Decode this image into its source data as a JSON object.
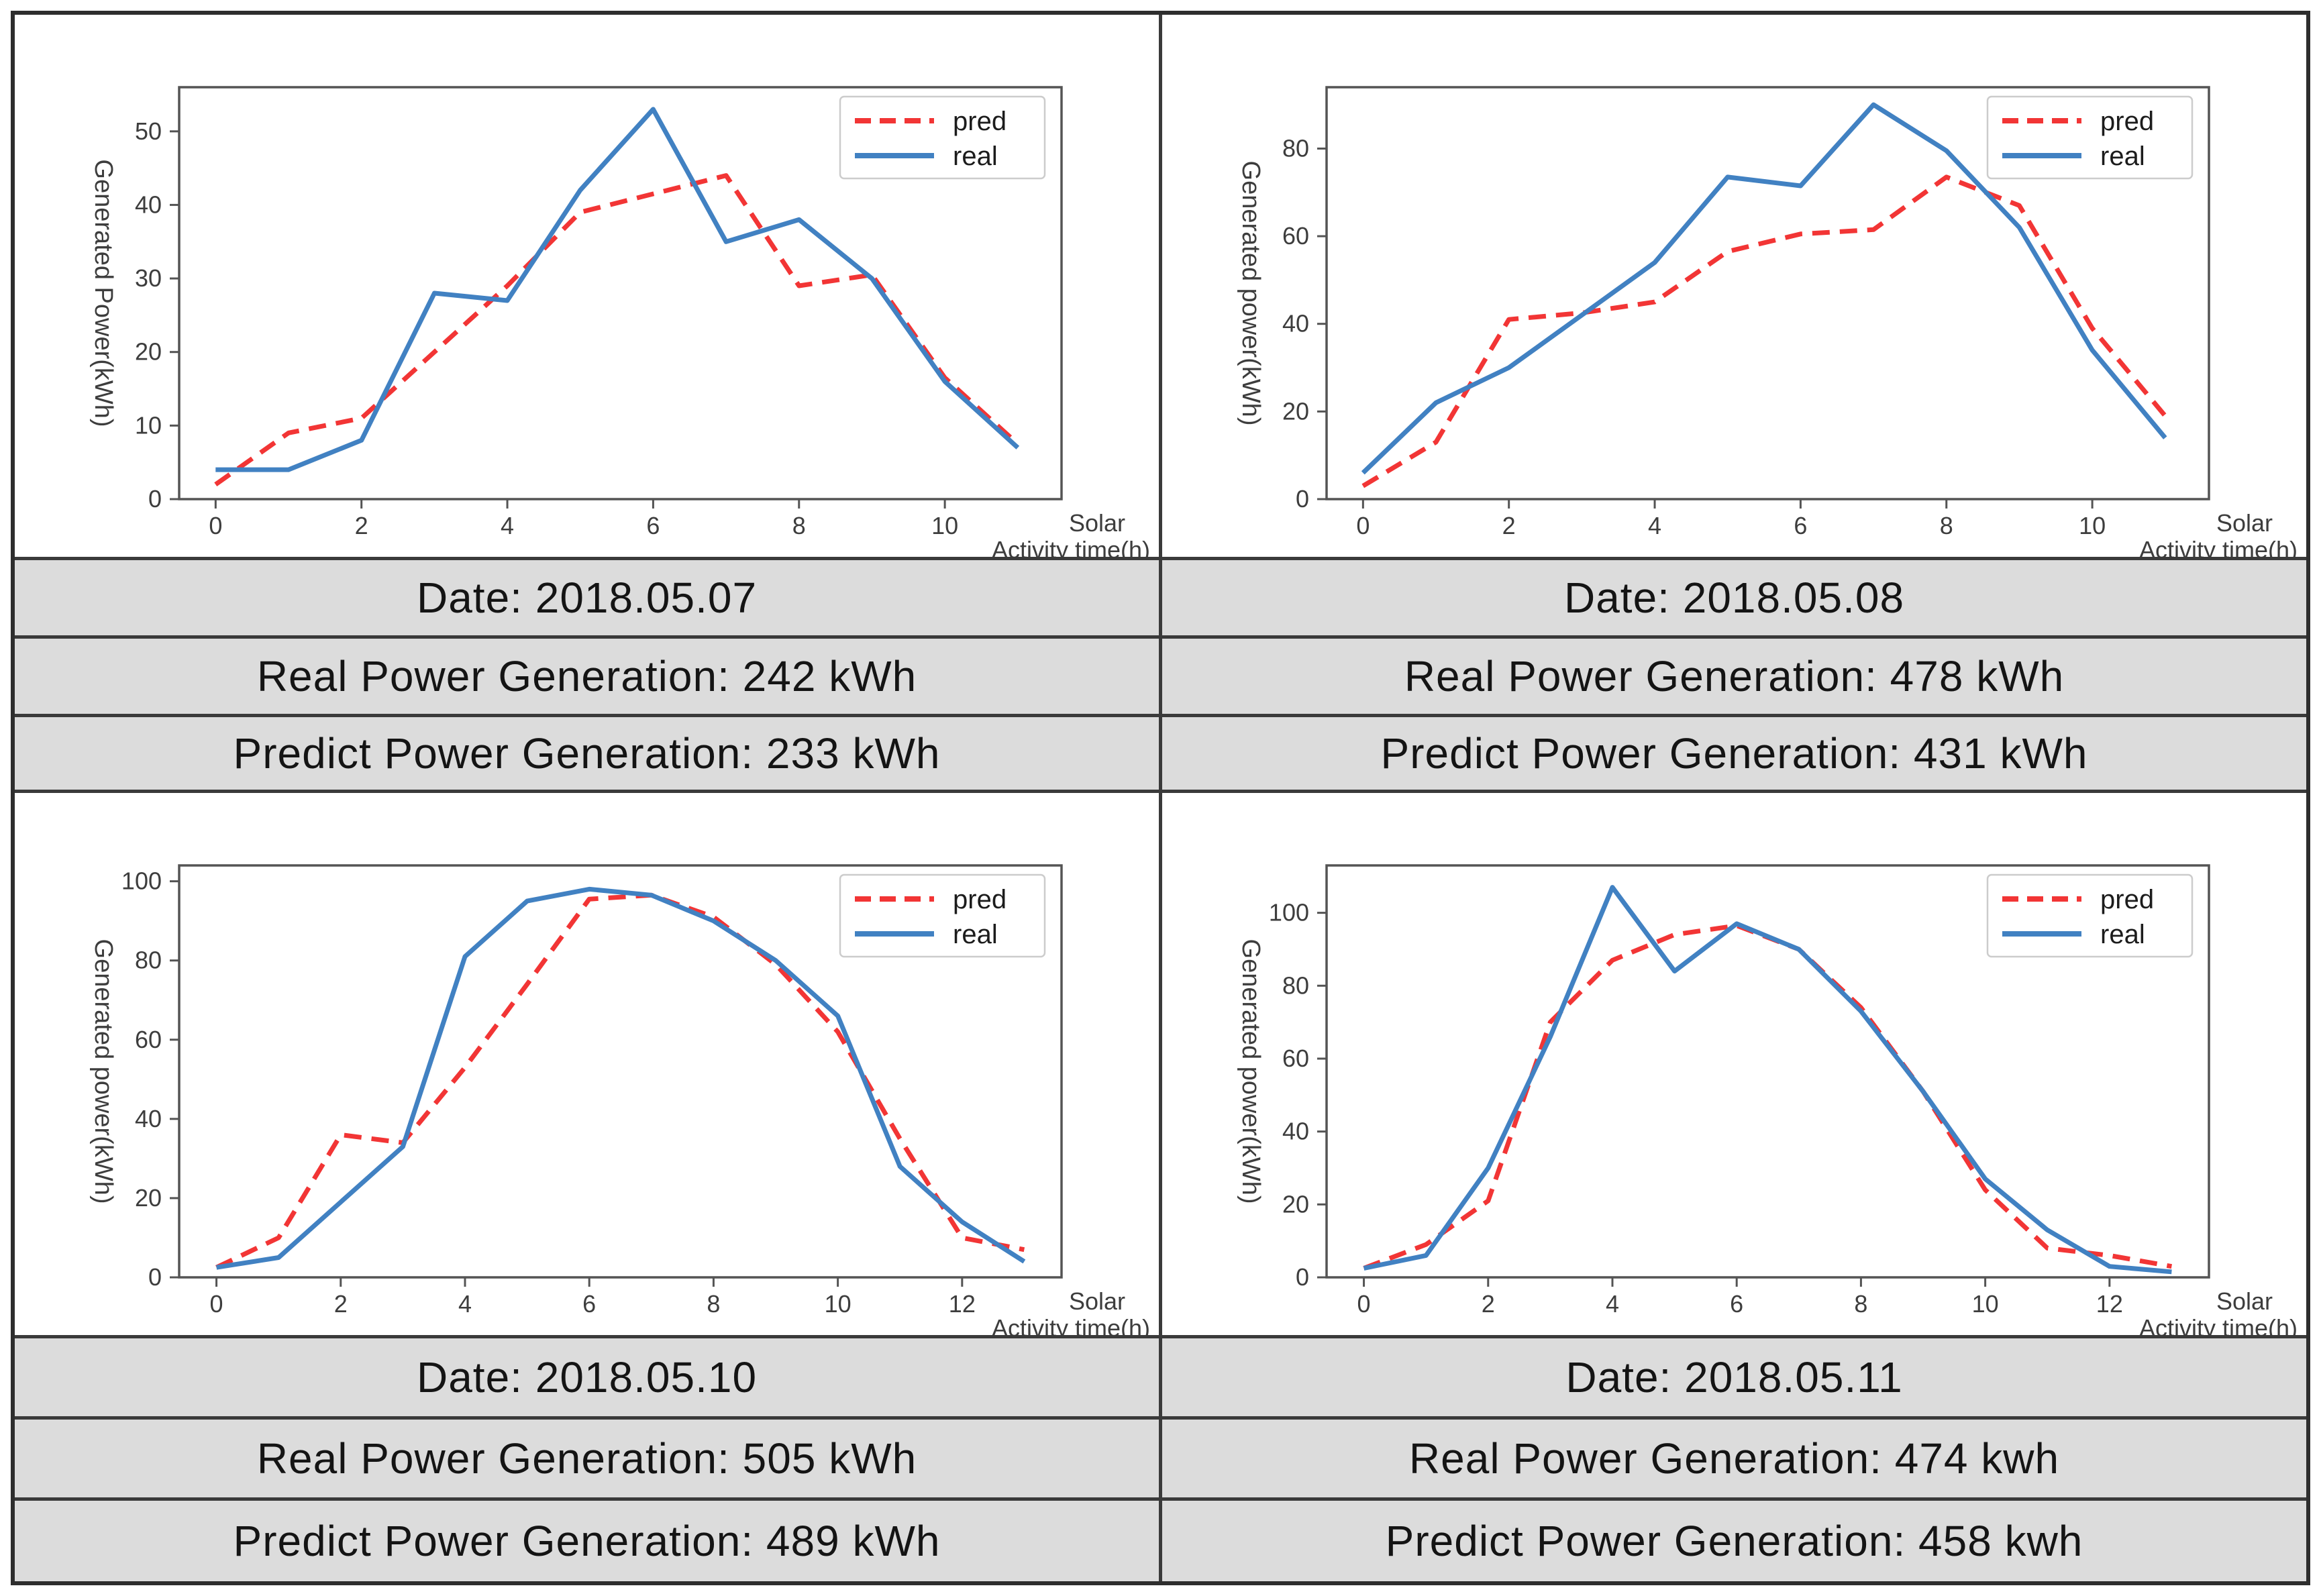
{
  "colors": {
    "pred": "#f23535",
    "real": "#4181c2",
    "axis": "#545454",
    "tick_text": "#3d3d3d",
    "label_text": "#3d3d3d",
    "legend_border": "#cccccc",
    "caption_bg": "#dcdcdc",
    "caption_text": "#141414",
    "grid_border": "#3a3a3a"
  },
  "legend_labels": {
    "pred": "pred",
    "real": "real"
  },
  "chart_data": [
    {
      "type": "line",
      "panel": "top-left",
      "ylabel": "Generated Power(kWh)",
      "xlabel_lines": [
        "Solar",
        "Activity time(h)"
      ],
      "x": [
        0,
        1,
        2,
        3,
        4,
        5,
        6,
        7,
        8,
        9,
        10,
        11
      ],
      "series": [
        {
          "name": "pred",
          "style": "dashed",
          "values": [
            2,
            9,
            11,
            20,
            29,
            39,
            41.5,
            44,
            29,
            30.5,
            16.5,
            7.5
          ]
        },
        {
          "name": "real",
          "style": "solid",
          "values": [
            4,
            4,
            8,
            28,
            27,
            42,
            53,
            35,
            38,
            30,
            16,
            7
          ]
        }
      ],
      "yticks": [
        0,
        10,
        20,
        30,
        40,
        50
      ],
      "xticks": [
        0,
        2,
        4,
        6,
        8,
        10
      ],
      "ylim": [
        0,
        56
      ],
      "xlim": [
        -0.5,
        11.6
      ],
      "legend": [
        "pred",
        "real"
      ],
      "legend_position": "upper right",
      "grid": false,
      "captions": {
        "date": "Date: 2018.05.07",
        "real": "Real Power Generation: 242 kWh",
        "predict": "Predict Power Generation: 233 kWh"
      }
    },
    {
      "type": "line",
      "panel": "top-right",
      "ylabel": "Generated  power(kWh)",
      "xlabel_lines": [
        "Solar",
        "Activity time(h)"
      ],
      "x": [
        0,
        1,
        2,
        3,
        4,
        5,
        6,
        7,
        8,
        9,
        10,
        11
      ],
      "series": [
        {
          "name": "pred",
          "style": "dashed",
          "values": [
            3,
            13,
            41,
            42.5,
            45,
            56.5,
            60.5,
            61.5,
            73.5,
            67,
            39,
            19
          ]
        },
        {
          "name": "real",
          "style": "solid",
          "values": [
            6,
            22,
            30,
            42,
            54,
            73.5,
            71.5,
            90,
            79.5,
            62,
            34,
            14
          ]
        }
      ],
      "yticks": [
        0,
        20,
        40,
        60,
        80
      ],
      "xticks": [
        0,
        2,
        4,
        6,
        8,
        10
      ],
      "ylim": [
        0,
        94
      ],
      "xlim": [
        -0.5,
        11.6
      ],
      "legend": [
        "pred",
        "real"
      ],
      "legend_position": "upper right",
      "grid": false,
      "captions": {
        "date": "Date: 2018.05.08",
        "real": "Real Power Generation: 478 kWh",
        "predict": "Predict Power Generation: 431 kWh"
      }
    },
    {
      "type": "line",
      "panel": "bottom-left",
      "ylabel": "Generated  power(kWh)",
      "xlabel_lines": [
        "Solar",
        "Activity time(h)"
      ],
      "x": [
        0,
        1,
        2,
        3,
        4,
        5,
        6,
        7,
        8,
        9,
        10,
        11,
        12,
        13
      ],
      "series": [
        {
          "name": "pred",
          "style": "dashed",
          "values": [
            2.5,
            10,
            36,
            34,
            53,
            74,
            95.5,
            96.5,
            91,
            79,
            62,
            35,
            10,
            7
          ]
        },
        {
          "name": "real",
          "style": "solid",
          "values": [
            2.5,
            5,
            19,
            33,
            81,
            95,
            98,
            96.5,
            90,
            80,
            66,
            28,
            14,
            4
          ]
        }
      ],
      "yticks": [
        0,
        20,
        40,
        60,
        80,
        100
      ],
      "xticks": [
        0,
        2,
        4,
        6,
        8,
        10,
        12
      ],
      "ylim": [
        0,
        104
      ],
      "xlim": [
        -0.6,
        13.6
      ],
      "legend": [
        "pred",
        "real"
      ],
      "legend_position": "upper right",
      "grid": false,
      "captions": {
        "date": "Date: 2018.05.10",
        "real": "Real Power Generation: 505 kWh",
        "predict": "Predict Power Generation: 489 kWh"
      }
    },
    {
      "type": "line",
      "panel": "bottom-right",
      "ylabel": "Generated  power(kWh)",
      "xlabel_lines": [
        "Solar",
        "Activity time(h)"
      ],
      "x": [
        0,
        1,
        2,
        3,
        4,
        5,
        6,
        7,
        8,
        9,
        10,
        11,
        12,
        13
      ],
      "series": [
        {
          "name": "pred",
          "style": "dashed",
          "values": [
            2.5,
            9,
            21,
            70,
            87,
            94,
            96.5,
            90,
            74,
            51,
            24,
            8,
            6,
            3
          ]
        },
        {
          "name": "real",
          "style": "solid",
          "values": [
            2.5,
            6,
            30,
            66,
            107,
            84,
            97,
            90,
            73,
            51,
            27,
            13,
            3,
            1.5
          ]
        }
      ],
      "yticks": [
        0,
        20,
        40,
        60,
        80,
        100
      ],
      "xticks": [
        0,
        2,
        4,
        6,
        8,
        10,
        12
      ],
      "ylim": [
        0,
        113
      ],
      "xlim": [
        -0.6,
        13.6
      ],
      "legend": [
        "pred",
        "real"
      ],
      "legend_position": "upper right",
      "grid": false,
      "captions": {
        "date": "Date: 2018.05.11",
        "real": "Real Power Generation: 474 kwh",
        "predict": "Predict Power Generation: 458 kwh"
      }
    }
  ]
}
